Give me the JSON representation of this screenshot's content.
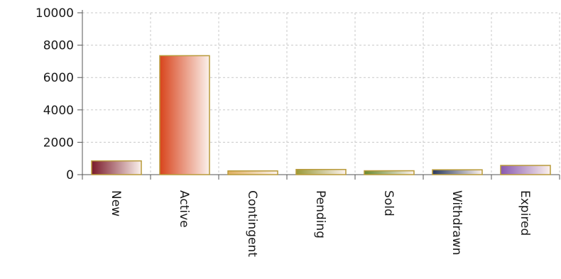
{
  "chart_data": {
    "type": "bar",
    "title": "",
    "xlabel": "",
    "ylabel": "",
    "ylim": [
      0,
      10000
    ],
    "yticks": [
      0,
      2000,
      4000,
      6000,
      8000,
      10000
    ],
    "grid": true,
    "categories": [
      "New",
      "Active",
      "Contingent",
      "Pending",
      "Sold",
      "Withdrawn",
      "Expired"
    ],
    "values": [
      850,
      7350,
      230,
      320,
      240,
      300,
      570
    ],
    "colors": [
      "#7a1a2a",
      "#d8441c",
      "#e0b060",
      "#9a9a38",
      "#6a8a30",
      "#2a3a60",
      "#8858b0"
    ]
  }
}
